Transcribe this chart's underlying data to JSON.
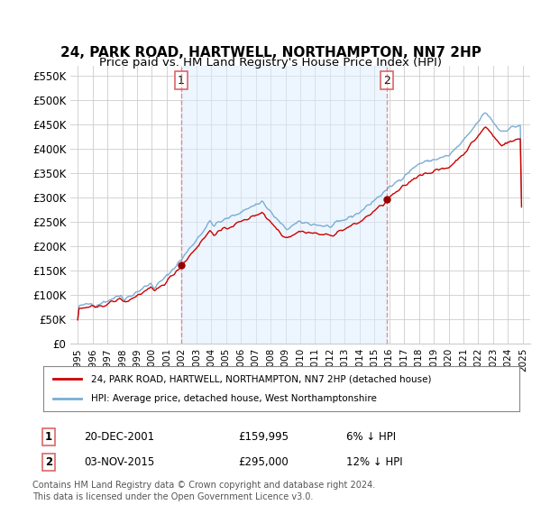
{
  "title": "24, PARK ROAD, HARTWELL, NORTHAMPTON, NN7 2HP",
  "subtitle": "Price paid vs. HM Land Registry's House Price Index (HPI)",
  "ylabel_ticks": [
    "£0",
    "£50K",
    "£100K",
    "£150K",
    "£200K",
    "£250K",
    "£300K",
    "£350K",
    "£400K",
    "£450K",
    "£500K",
    "£550K"
  ],
  "ytick_values": [
    0,
    50000,
    100000,
    150000,
    200000,
    250000,
    300000,
    350000,
    400000,
    450000,
    500000,
    550000
  ],
  "ylim": [
    0,
    570000
  ],
  "purchase1_x": 2001.97,
  "purchase1_y": 159995,
  "purchase1_label": "1",
  "purchase2_x": 2015.84,
  "purchase2_y": 295000,
  "purchase2_label": "2",
  "hpi_color": "#7aadd4",
  "price_color": "#cc0000",
  "vline_color": "#dd6666",
  "vline_alpha": 0.7,
  "vline_style": "--",
  "shade_color": "#ddeeff",
  "shade_alpha": 0.5,
  "marker_color": "#990000",
  "marker_size": 6,
  "legend_label1": "24, PARK ROAD, HARTWELL, NORTHAMPTON, NN7 2HP (detached house)",
  "legend_label2": "HPI: Average price, detached house, West Northamptonshire",
  "table_row1": [
    "1",
    "20-DEC-2001",
    "£159,995",
    "6% ↓ HPI"
  ],
  "table_row2": [
    "2",
    "03-NOV-2015",
    "£295,000",
    "12% ↓ HPI"
  ],
  "footer": "Contains HM Land Registry data © Crown copyright and database right 2024.\nThis data is licensed under the Open Government Licence v3.0.",
  "bg_color": "#ffffff",
  "grid_color": "#cccccc",
  "xmin": 1994.5,
  "xmax": 2025.5
}
